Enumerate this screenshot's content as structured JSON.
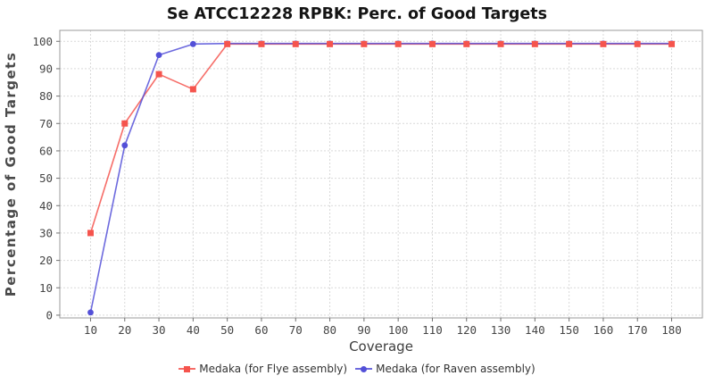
{
  "chart_data": {
    "type": "line",
    "title": "Se ATCC12228 RPBK: Perc. of Good Targets",
    "xlabel": "Coverage",
    "ylabel": "Percentage of Good Targets",
    "x": [
      10,
      20,
      30,
      40,
      50,
      60,
      70,
      80,
      90,
      100,
      110,
      120,
      130,
      140,
      150,
      160,
      170,
      180
    ],
    "xticks": [
      10,
      20,
      30,
      40,
      50,
      60,
      70,
      80,
      90,
      100,
      110,
      120,
      130,
      140,
      150,
      160,
      170,
      180
    ],
    "yticks": [
      0,
      10,
      20,
      30,
      40,
      50,
      60,
      70,
      80,
      90,
      100
    ],
    "xlim": [
      1,
      189
    ],
    "ylim": [
      -1,
      104
    ],
    "grid": true,
    "legend_position": "bottom",
    "series": [
      {
        "name": "Medaka (for Flye assembly)",
        "color": "#f5544d",
        "marker": "square",
        "values": [
          30,
          70,
          88,
          82.5,
          99,
          99,
          99,
          99,
          99,
          99,
          99,
          99,
          99,
          99,
          99,
          99,
          99,
          99
        ]
      },
      {
        "name": "Medaka (for Raven assembly)",
        "color": "#5350d8",
        "marker": "circle",
        "values": [
          1,
          62,
          95,
          99,
          99.2,
          99.2,
          99.2,
          99.2,
          99.2,
          99.2,
          99.2,
          99.2,
          99.2,
          99.2,
          99.2,
          99.2,
          99.2,
          99.2
        ]
      }
    ],
    "style": {
      "grid_color": "#d9d9d9",
      "border_color": "#9b9b9b",
      "tick_label_color": "#454545"
    }
  }
}
